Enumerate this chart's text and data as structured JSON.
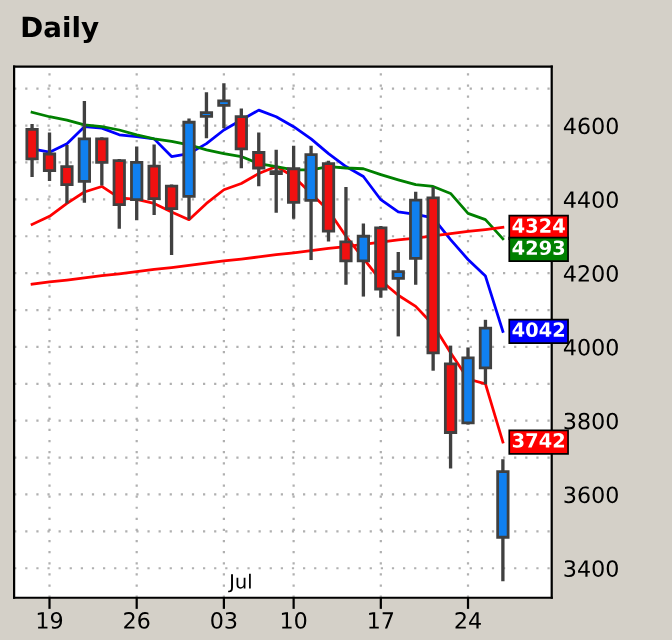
{
  "chart_data": {
    "type": "candlestick",
    "title": "Daily",
    "categories": [
      null,
      "19",
      null,
      null,
      null,
      null,
      "26",
      null,
      null,
      null,
      null,
      "03",
      null,
      null,
      null,
      "10",
      null,
      null,
      null,
      null,
      "17",
      null,
      null,
      null,
      null,
      "24",
      null,
      null
    ],
    "ohlc": [
      [
        4590,
        4600,
        4465,
        4510
      ],
      [
        4523,
        4577,
        4454,
        4478
      ],
      [
        4489,
        4543,
        4393,
        4440
      ],
      [
        4449,
        4662,
        4395,
        4564
      ],
      [
        4564,
        4564,
        4442,
        4500
      ],
      [
        4505,
        4505,
        4325,
        4386
      ],
      [
        4399,
        4539,
        4348,
        4500
      ],
      [
        4490,
        4544,
        4362,
        4402
      ],
      [
        4436,
        4436,
        4254,
        4375
      ],
      [
        4408,
        4615,
        4350,
        4609
      ],
      [
        4625,
        4686,
        4570,
        4635
      ],
      [
        4655,
        4710,
        4597,
        4667
      ],
      [
        4624,
        4642,
        4489,
        4537
      ],
      [
        4527,
        4577,
        4440,
        4485
      ],
      [
        4475,
        4530,
        4368,
        4470
      ],
      [
        4483,
        4541,
        4352,
        4392
      ],
      [
        4397,
        4541,
        4240,
        4521
      ],
      [
        4497,
        4500,
        4290,
        4314
      ],
      [
        4285,
        4429,
        4173,
        4233
      ],
      [
        4233,
        4330,
        4141,
        4300
      ],
      [
        4323,
        4323,
        4138,
        4157
      ],
      [
        4186,
        4253,
        4033,
        4204
      ],
      [
        4240,
        4416,
        4173,
        4398
      ],
      [
        4404,
        4429,
        3940,
        3984
      ],
      [
        3954,
        3999,
        3675,
        3768
      ],
      [
        3794,
        3994,
        3794,
        3970
      ],
      [
        3943,
        4069,
        3903,
        4051
      ],
      [
        3484,
        3691,
        3369,
        3662
      ]
    ],
    "series": [
      {
        "type": "line",
        "color": "#ff0000",
        "values": [
          4332,
          4354,
          4389,
          4420,
          4435,
          4404,
          4400,
          4389,
          4366,
          4345,
          4389,
          4426,
          4443,
          4470,
          4489,
          4462,
          4416,
          4370,
          4300,
          4240,
          4180,
          4140,
          4110,
          4060,
          3984,
          3913,
          3900,
          3742
        ],
        "value_labels": [
          null,
          null,
          null,
          null,
          null,
          null,
          null,
          null,
          null,
          null,
          null,
          null,
          null,
          null,
          null,
          null,
          null,
          null,
          null,
          null,
          null,
          null,
          null,
          null,
          null,
          null,
          null,
          "3742"
        ]
      },
      {
        "type": "line",
        "color": "#0000ff",
        "values": [
          4537,
          4528,
          4551,
          4597,
          4593,
          4575,
          4570,
          4564,
          4516,
          4524,
          4551,
          4588,
          4615,
          4642,
          4624,
          4597,
          4564,
          4524,
          4489,
          4462,
          4399,
          4366,
          4359,
          4350,
          4291,
          4237,
          4192,
          4042
        ],
        "value_labels": [
          null,
          null,
          null,
          null,
          null,
          null,
          null,
          null,
          null,
          null,
          null,
          null,
          null,
          null,
          null,
          null,
          null,
          null,
          null,
          null,
          null,
          null,
          null,
          null,
          null,
          null,
          null,
          "4042"
        ]
      },
      {
        "type": "line",
        "color": "#008000",
        "values": [
          4636,
          4624,
          4615,
          4602,
          4597,
          4588,
          4575,
          4564,
          4557,
          4548,
          4534,
          4524,
          4516,
          4497,
          4489,
          4480,
          4480,
          4489,
          4485,
          4483,
          4467,
          4453,
          4440,
          4435,
          4416,
          4362,
          4345,
          4293
        ],
        "value_labels": [
          null,
          null,
          null,
          null,
          null,
          null,
          null,
          null,
          null,
          null,
          null,
          null,
          null,
          null,
          null,
          null,
          null,
          null,
          null,
          null,
          null,
          null,
          null,
          null,
          null,
          null,
          null,
          "4293"
        ]
      },
      {
        "type": "line",
        "color": "#ff0000",
        "values": [
          4170,
          4176,
          4181,
          4187,
          4193,
          4198,
          4204,
          4210,
          4215,
          4221,
          4227,
          4233,
          4238,
          4244,
          4250,
          4255,
          4261,
          4267,
          4272,
          4278,
          4284,
          4290,
          4295,
          4301,
          4307,
          4313,
          4318,
          4324
        ],
        "value_labels": [
          null,
          null,
          null,
          null,
          null,
          null,
          null,
          null,
          null,
          null,
          null,
          null,
          null,
          null,
          null,
          null,
          null,
          null,
          null,
          null,
          null,
          null,
          null,
          null,
          null,
          null,
          null,
          "4324"
        ]
      }
    ],
    "annotations": [
      "Jul"
    ],
    "ylim": [
      3320,
      4760
    ],
    "yticks": [
      3400,
      {
        "value": 3500,
        "label": null
      },
      3600,
      {
        "value": 3700,
        "label": null
      },
      3800,
      {
        "value": 3900,
        "label": null
      },
      4000,
      {
        "value": 4100,
        "label": null
      },
      4200,
      {
        "value": 4300,
        "label": null
      },
      4400,
      {
        "value": 4500,
        "label": null
      },
      4600,
      {
        "value": 4700,
        "label": null
      }
    ],
    "grid": true
  }
}
